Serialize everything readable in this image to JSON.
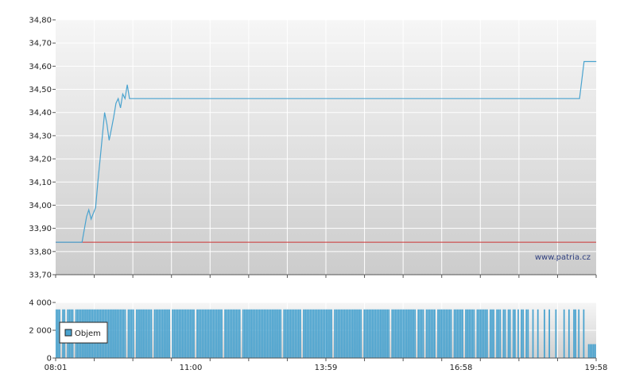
{
  "chart_data": [
    {
      "type": "line",
      "title": "",
      "xlabel": "",
      "ylabel": "",
      "ylim": [
        33.7,
        34.8
      ],
      "y_ticks": [
        "34,80",
        "34,70",
        "34,60",
        "34,50",
        "34,40",
        "34,30",
        "34,20",
        "34,10",
        "34,00",
        "33,90",
        "33,80",
        "33,70"
      ],
      "grid": true,
      "watermark": "www.patria.cz",
      "reference_line": {
        "value": 33.84,
        "color": "#cc3333"
      },
      "series": [
        {
          "color": "#4aa3cf",
          "points": [
            [
              8.02,
              33.84
            ],
            [
              8.5,
              33.84
            ],
            [
              8.6,
              33.84
            ],
            [
              8.7,
              33.95
            ],
            [
              8.75,
              33.98
            ],
            [
              8.8,
              33.94
            ],
            [
              8.9,
              33.99
            ],
            [
              8.95,
              34.1
            ],
            [
              9.0,
              34.2
            ],
            [
              9.05,
              34.3
            ],
            [
              9.1,
              34.4
            ],
            [
              9.15,
              34.35
            ],
            [
              9.2,
              34.28
            ],
            [
              9.25,
              34.33
            ],
            [
              9.3,
              34.38
            ],
            [
              9.35,
              34.44
            ],
            [
              9.4,
              34.46
            ],
            [
              9.45,
              34.42
            ],
            [
              9.5,
              34.48
            ],
            [
              9.55,
              34.46
            ],
            [
              9.6,
              34.52
            ],
            [
              9.65,
              34.46
            ],
            [
              9.7,
              34.46
            ],
            [
              19.5,
              34.46
            ],
            [
              19.6,
              34.46
            ],
            [
              19.7,
              34.62
            ],
            [
              19.97,
              34.62
            ]
          ]
        }
      ]
    },
    {
      "type": "bar",
      "title": "",
      "ylim": [
        0,
        4000
      ],
      "y_ticks": [
        "4 000",
        "2 000",
        "0"
      ],
      "x_ticks": [
        "08:01",
        "11:00",
        "13:59",
        "16:58",
        "19:58"
      ],
      "legend": {
        "label": "Objem",
        "position": "left"
      },
      "series": [
        {
          "name": "Objem",
          "color": "#4aa3cf",
          "values": [
            3500,
            3500,
            3500,
            0,
            3500,
            3500,
            0,
            3500,
            3500,
            3500,
            3500,
            0,
            3500,
            3500,
            3500,
            3500,
            3500,
            3500,
            3500,
            3500,
            3500,
            3500,
            3500,
            3500,
            3500,
            3500,
            3500,
            3500,
            3500,
            3500,
            3500,
            3500,
            3500,
            3500,
            3500,
            3500,
            3500,
            3500,
            3500,
            3500,
            3500,
            3500,
            3500,
            0,
            3500,
            3500,
            3500,
            3500,
            0,
            3500,
            3500,
            3500,
            3500,
            3500,
            3500,
            3500,
            3500,
            3500,
            3500,
            0,
            3500,
            3500,
            3500,
            3500,
            3500,
            3500,
            3500,
            3500,
            3500,
            3500,
            0,
            3500,
            3500,
            3500,
            3500,
            3500,
            3500,
            3500,
            3500,
            3500,
            3500,
            3500,
            3500,
            3500,
            3500,
            0,
            3500,
            3500,
            3500,
            3500,
            3500,
            3500,
            3500,
            3500,
            3500,
            3500,
            3500,
            3500,
            3500,
            3500,
            3500,
            3500,
            0,
            3500,
            3500,
            3500,
            3500,
            3500,
            3500,
            3500,
            3500,
            3500,
            3500,
            0,
            3500,
            3500,
            3500,
            3500,
            3500,
            3500,
            3500,
            3500,
            3500,
            3500,
            3500,
            3500,
            3500,
            3500,
            3500,
            3500,
            3500,
            3500,
            3500,
            3500,
            3500,
            3500,
            3500,
            3500,
            0,
            3500,
            3500,
            3500,
            3500,
            3500,
            3500,
            3500,
            3500,
            3500,
            3500,
            3500,
            0,
            3500,
            3500,
            3500,
            3500,
            3500,
            3500,
            3500,
            3500,
            3500,
            3500,
            3500,
            3500,
            3500,
            3500,
            3500,
            3500,
            3500,
            3500,
            0,
            3500,
            3500,
            3500,
            3500,
            3500,
            3500,
            3500,
            3500,
            3500,
            3500,
            3500,
            3500,
            3500,
            3500,
            3500,
            3500,
            3500,
            0,
            3500,
            3500,
            3500,
            3500,
            3500,
            3500,
            3500,
            3500,
            3500,
            3500,
            3500,
            3500,
            3500,
            3500,
            3500,
            3500,
            0,
            3500,
            3500,
            3500,
            3500,
            3500,
            3500,
            3500,
            3500,
            3500,
            3500,
            3500,
            3500,
            3500,
            3500,
            3500,
            0,
            3500,
            3500,
            3500,
            3500,
            0,
            3500,
            3500,
            3500,
            3500,
            3500,
            3500,
            0,
            3500,
            3500,
            3500,
            3500,
            3500,
            3500,
            3500,
            3500,
            3500,
            0,
            3500,
            3500,
            3500,
            3500,
            3500,
            3500,
            0,
            3500,
            3500,
            3500,
            3500,
            3500,
            3500,
            0,
            3500,
            3500,
            3500,
            3500,
            3500,
            3500,
            3500,
            0,
            3500,
            3500,
            3500,
            0,
            3500,
            3500,
            3500,
            0,
            3500,
            3500,
            0,
            3500,
            3500,
            0,
            3500,
            3500,
            0,
            3500,
            0,
            3500,
            3500,
            0,
            3500,
            3500,
            0,
            0,
            3500,
            0,
            0,
            3500,
            0,
            0,
            0,
            3500,
            0,
            0,
            3500,
            0,
            0,
            0,
            3500,
            0,
            0,
            0,
            0,
            3500,
            0,
            0,
            3500,
            0,
            0,
            3500,
            3500,
            0,
            3500,
            0,
            0,
            3500,
            0,
            0,
            1000,
            1000,
            1000,
            1000,
            1000
          ]
        }
      ]
    }
  ]
}
